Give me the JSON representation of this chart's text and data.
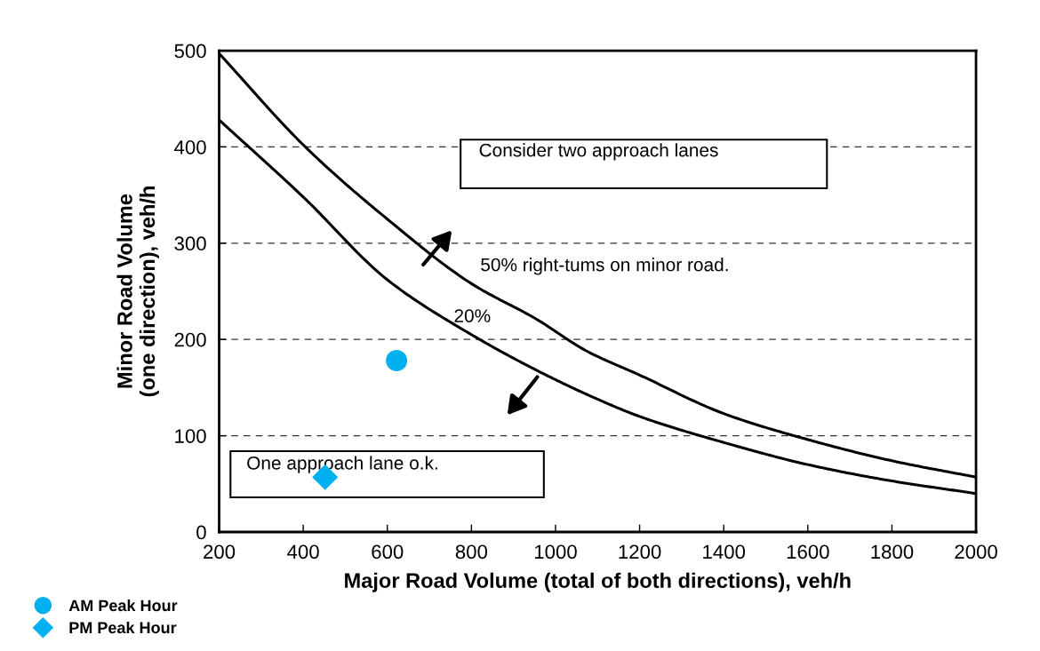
{
  "chart_data": {
    "type": "line",
    "xlabel": "Major Road Volume (total of both directions), veh/h",
    "ylabel": "Minor Road Volume\n(one direction), veh/h",
    "xlim": [
      200,
      2000
    ],
    "xticks": [
      200,
      400,
      600,
      800,
      1000,
      1200,
      1400,
      1600,
      1800,
      2000
    ],
    "ylim": [
      0,
      500
    ],
    "yticks": [
      0,
      100,
      200,
      300,
      400,
      500
    ],
    "grid": "y",
    "legend": "bottom left",
    "series": [
      {
        "name": "50% right-tums on minor road.",
        "color": "#000000",
        "line_style": "solid",
        "marker": "none",
        "x": [
          200,
          405,
          600,
          800,
          955,
          1074,
          1200,
          1400,
          1600,
          1800,
          2000
        ],
        "values": [
          497,
          400,
          325,
          258,
          221,
          188,
          163,
          123,
          96,
          74,
          57
        ]
      },
      {
        "name": "20%",
        "color": "#000000",
        "line_style": "solid",
        "marker": "none",
        "x": [
          200,
          400,
          600,
          800,
          955,
          1074,
          1200,
          1400,
          1600,
          1800,
          2000
        ],
        "values": [
          428,
          348,
          262,
          205,
          168,
          143,
          120,
          93,
          70,
          53,
          40
        ]
      },
      {
        "name": "AM Peak Hour",
        "type": "scatter",
        "color": "#00b0f0",
        "marker": "circle",
        "x": [
          622
        ],
        "values": [
          178
        ]
      },
      {
        "name": "PM Peak Hour",
        "type": "scatter",
        "color": "#00b0f0",
        "marker": "diamond",
        "x": [
          452
        ],
        "values": [
          57
        ]
      }
    ],
    "annotations": [
      "Consider two approach lanes",
      "One approach lane o.k."
    ]
  }
}
